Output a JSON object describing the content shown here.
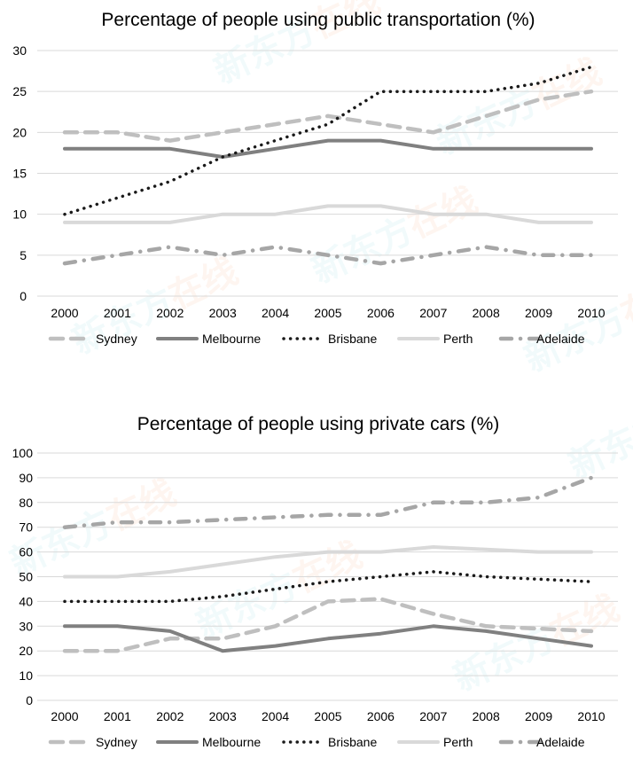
{
  "chart_data": [
    {
      "type": "line",
      "title": "Percentage of people using public transportation (%)",
      "xlabel": "",
      "ylabel": "",
      "ylim": [
        0,
        30
      ],
      "yticks": [
        0,
        5,
        10,
        15,
        20,
        25,
        30
      ],
      "grid": true,
      "legend_position": "bottom",
      "categories": [
        "2000",
        "2001",
        "2002",
        "2003",
        "2004",
        "2005",
        "2006",
        "2007",
        "2008",
        "2009",
        "2010"
      ],
      "series": [
        {
          "name": "Sydney",
          "style": "dash",
          "color": "#bfbfbf",
          "values": [
            20,
            20,
            19,
            20,
            21,
            22,
            21,
            20,
            22,
            24,
            25
          ]
        },
        {
          "name": "Melbourne",
          "style": "solid",
          "color": "#808080",
          "values": [
            18,
            18,
            18,
            17,
            18,
            19,
            19,
            18,
            18,
            18,
            18
          ]
        },
        {
          "name": "Brisbane",
          "style": "dot",
          "color": "#1a1a1a",
          "values": [
            10,
            12,
            14,
            17,
            19,
            21,
            25,
            25,
            25,
            26,
            28
          ]
        },
        {
          "name": "Perth",
          "style": "solid",
          "color": "#d9d9d9",
          "values": [
            9,
            9,
            9,
            10,
            10,
            11,
            11,
            10,
            10,
            9,
            9
          ]
        },
        {
          "name": "Adelaide",
          "style": "dash-dot",
          "color": "#a6a6a6",
          "values": [
            4,
            5,
            6,
            5,
            6,
            5,
            4,
            5,
            6,
            5,
            5
          ]
        }
      ]
    },
    {
      "type": "line",
      "title": "Percentage of people using private cars (%)",
      "xlabel": "",
      "ylabel": "",
      "ylim": [
        0,
        100
      ],
      "yticks": [
        0,
        10,
        20,
        30,
        40,
        50,
        60,
        70,
        80,
        90,
        100
      ],
      "grid": true,
      "legend_position": "bottom",
      "categories": [
        "2000",
        "2001",
        "2002",
        "2003",
        "2004",
        "2005",
        "2006",
        "2007",
        "2008",
        "2009",
        "2010"
      ],
      "series": [
        {
          "name": "Sydney",
          "style": "dash",
          "color": "#bfbfbf",
          "values": [
            20,
            20,
            25,
            25,
            30,
            40,
            41,
            35,
            30,
            29,
            28
          ]
        },
        {
          "name": "Melbourne",
          "style": "solid",
          "color": "#808080",
          "values": [
            30,
            30,
            28,
            20,
            22,
            25,
            27,
            30,
            28,
            25,
            22
          ]
        },
        {
          "name": "Brisbane",
          "style": "dot",
          "color": "#1a1a1a",
          "values": [
            40,
            40,
            40,
            42,
            45,
            48,
            50,
            52,
            50,
            49,
            48
          ]
        },
        {
          "name": "Perth",
          "style": "solid",
          "color": "#d9d9d9",
          "values": [
            50,
            50,
            52,
            55,
            58,
            60,
            60,
            62,
            61,
            60,
            60
          ]
        },
        {
          "name": "Adelaide",
          "style": "dash-dot",
          "color": "#a6a6a6",
          "values": [
            70,
            72,
            72,
            73,
            74,
            75,
            75,
            80,
            80,
            82,
            90
          ]
        }
      ]
    }
  ],
  "watermark": {
    "text": "新东方在线",
    "colors": [
      "#7fd6e0",
      "#f7a97a"
    ]
  }
}
